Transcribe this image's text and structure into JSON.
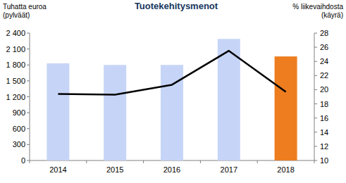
{
  "chart_data": {
    "type": "bar",
    "title": "Tuotekehitysmenot",
    "y_label": "Tuhatta euroa\n(pylväät)",
    "y2_label": "% liikevaihdosta\n(käyrä)",
    "categories": [
      "2014",
      "2015",
      "2016",
      "2017",
      "2018"
    ],
    "series": [
      {
        "type": "bar",
        "axis": "y",
        "colors": [
          "#c6d5f7",
          "#c6d5f7",
          "#c6d5f7",
          "#c6d5f7",
          "#ed7d1f"
        ],
        "values": [
          1830,
          1800,
          1800,
          2290,
          1960
        ]
      },
      {
        "type": "line",
        "axis": "y2",
        "color": "#000000",
        "line_style": "solid",
        "values": [
          19.4,
          19.3,
          20.7,
          25.5,
          19.7
        ]
      }
    ],
    "ylim": [
      0,
      2400
    ],
    "yticks": [
      0,
      300,
      600,
      900,
      {
        "value": 1200,
        "label": "1 200"
      },
      {
        "value": 1500,
        "label": "1 500"
      },
      {
        "value": 1800,
        "label": "1 800"
      },
      {
        "value": 2100,
        "label": "2 100"
      },
      {
        "value": 2400,
        "label": "2 400"
      }
    ],
    "y2lim": [
      10,
      28
    ],
    "y2ticks": [
      10,
      12,
      14,
      16,
      18,
      20,
      22,
      24,
      26,
      28
    ],
    "grid": false
  }
}
